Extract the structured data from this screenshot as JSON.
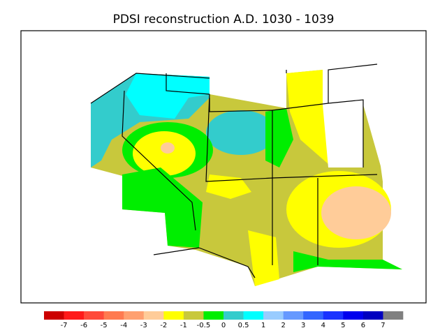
{
  "title": "PDSI reconstruction A.D. 1030 - 1039",
  "colorbar": {
    "colors": [
      "#cc0000",
      "#ff1a1a",
      "#ff4a3a",
      "#ff7a50",
      "#ffa070",
      "#ffcc99",
      "#ffff00",
      "#c8c83c",
      "#00ee00",
      "#33cccc",
      "#00ffff",
      "#99ccff",
      "#6699ff",
      "#3366ff",
      "#1a33ff",
      "#0000ee",
      "#0000c0",
      "#808080"
    ],
    "ticks": [
      -7,
      -6,
      -5,
      -4,
      -3,
      -2,
      -1,
      -0.5,
      0,
      0.5,
      1,
      2,
      3,
      4,
      5,
      6,
      7
    ]
  }
}
